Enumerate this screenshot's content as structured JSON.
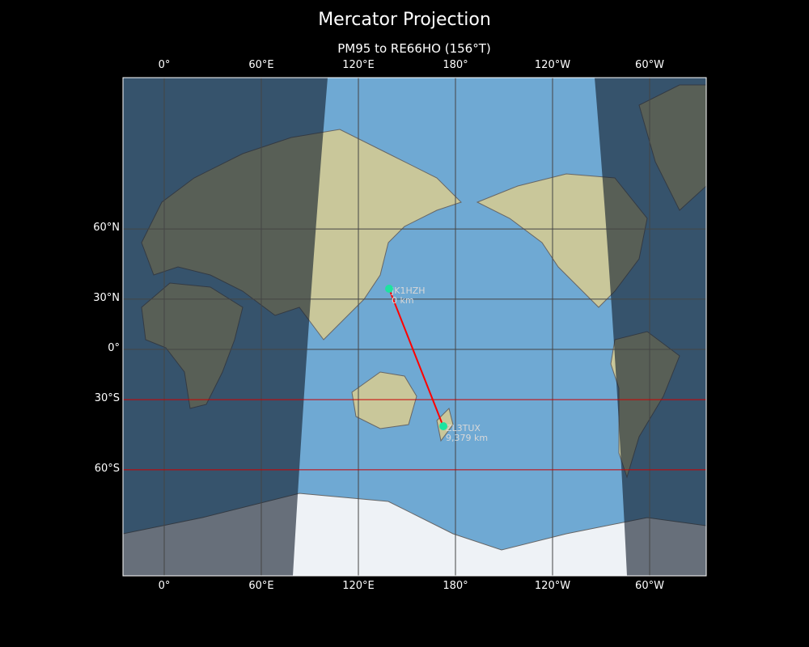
{
  "figure": {
    "title": "Mercator Projection",
    "subtitle": "PM95 to RE66HO (156°T)"
  },
  "map": {
    "projection": "Mercator",
    "central_longitude": 154.5,
    "extent_lon": [
      -25.5,
      335
    ],
    "lon_ticks": [
      {
        "lon": 0,
        "label": "0°"
      },
      {
        "lon": 60,
        "label": "60°E"
      },
      {
        "lon": 120,
        "label": "120°E"
      },
      {
        "lon": 180,
        "label": "180°"
      },
      {
        "lon": 240,
        "label": "120°W"
      },
      {
        "lon": 300,
        "label": "60°W"
      }
    ],
    "lat_ticks": [
      {
        "lat": 60,
        "label": "60°N"
      },
      {
        "lat": 30,
        "label": "30°N"
      },
      {
        "lat": 0,
        "label": "0°"
      },
      {
        "lat": -30,
        "label": "30°S"
      },
      {
        "lat": -60,
        "label": "60°S"
      }
    ],
    "highlighted_latitudes": [
      -30,
      -60
    ],
    "colors": {
      "ocean": "#6fa9d3",
      "land": "#c9c79a",
      "ice": "#eef2f6",
      "night_overlay": "rgba(20,30,45,0.62)",
      "gridline": "#444444",
      "highlight_line": "#cc0000",
      "path": "#ff0000",
      "marker": "#1de3a0",
      "station_label": "#d8d8d8"
    },
    "stations": [
      {
        "call": "JK1HZH",
        "distance": "0 km",
        "lat": 35.4,
        "lon": 139
      },
      {
        "call": "ZL3TUX",
        "distance": "9,379 km",
        "lat": -43.5,
        "lon": 172.5
      }
    ]
  }
}
